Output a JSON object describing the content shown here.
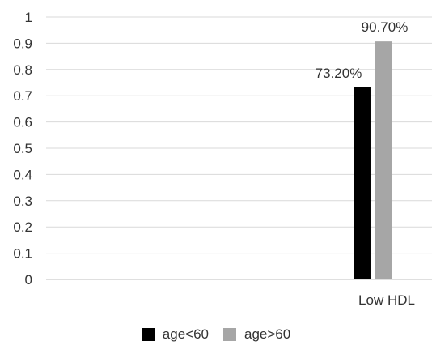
{
  "chart_data": {
    "type": "bar",
    "categories": [
      "Low HDL"
    ],
    "series": [
      {
        "name": "age<60",
        "values": [
          0.732
        ],
        "label": "73.20%",
        "color": "#000000"
      },
      {
        "name": "age>60",
        "values": [
          0.907
        ],
        "label": "90.70%",
        "color": "#a6a6a6"
      }
    ],
    "ylim": [
      0,
      1
    ],
    "yticks": [
      "0",
      "0.1",
      "0.2",
      "0.3",
      "0.4",
      "0.5",
      "0.6",
      "0.7",
      "0.8",
      "0.9",
      "1"
    ],
    "grid": true,
    "legend": "bottom"
  }
}
